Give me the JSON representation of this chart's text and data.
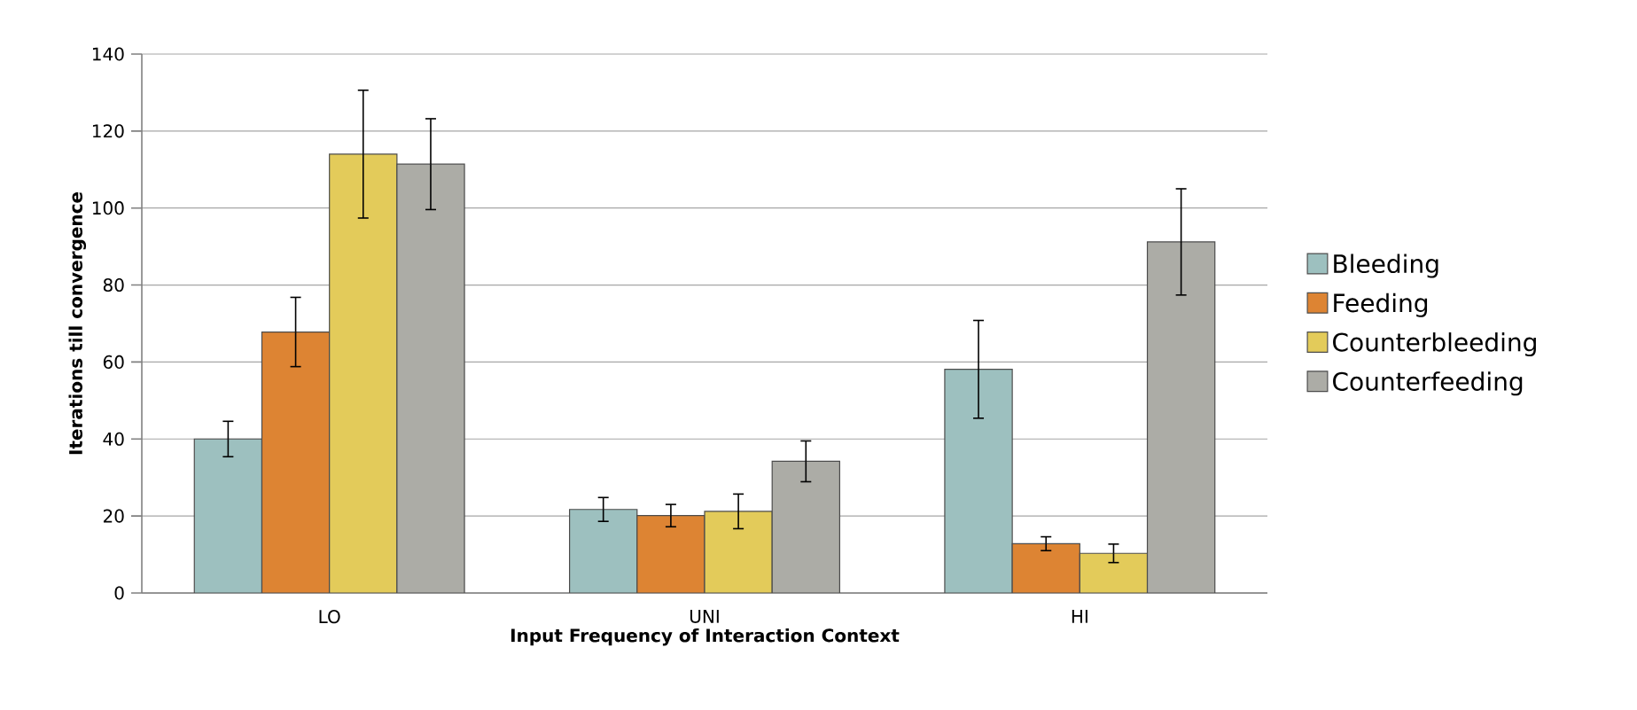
{
  "chart_data": {
    "type": "bar",
    "xlabel": "Input Frequency of Interaction Context",
    "ylabel": "Iterations till convergence",
    "categories": [
      "LO",
      "UNI",
      "HI"
    ],
    "series": [
      {
        "name": "Bleeding",
        "color": "#9dc0bf",
        "values": [
          40,
          21.7,
          58.1
        ],
        "errors": [
          4.6,
          3.1,
          12.7
        ]
      },
      {
        "name": "Feeding",
        "color": "#dd8433",
        "values": [
          67.8,
          20.1,
          12.8
        ],
        "errors": [
          9,
          2.9,
          1.8
        ]
      },
      {
        "name": "Counterbleeding",
        "color": "#e3cb5a",
        "values": [
          114,
          21.2,
          10.3
        ],
        "errors": [
          16.6,
          4.5,
          2.4
        ]
      },
      {
        "name": "Counterfeeding",
        "color": "#acaca6",
        "values": [
          111.4,
          34.2,
          91.2
        ],
        "errors": [
          11.8,
          5.3,
          13.8
        ]
      }
    ],
    "ylim": [
      0,
      140
    ],
    "yticks": [
      0,
      20,
      40,
      60,
      80,
      100,
      120,
      140
    ],
    "grid": "y",
    "legend": "right"
  }
}
